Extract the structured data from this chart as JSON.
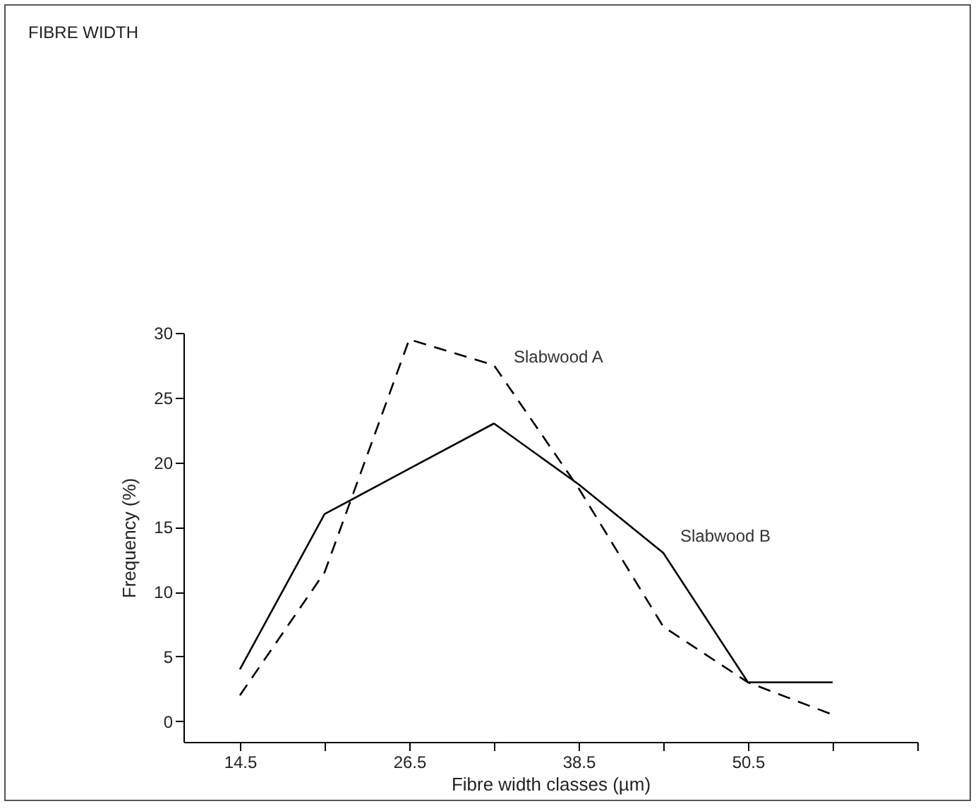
{
  "chart_data": {
    "type": "line",
    "title": "FIBRE WIDTH",
    "xlabel": "Fibre width classes (µm)",
    "ylabel": "Frequency (%)",
    "x": [
      14.5,
      20.5,
      26.5,
      32.5,
      38.5,
      44.5,
      50.5,
      56.5
    ],
    "series": [
      {
        "name": "Slabwood A",
        "color": "#000000",
        "line_style": "dashed",
        "values": [
          2,
          11.5,
          29.5,
          27.5,
          18,
          7.3,
          3,
          0.5
        ]
      },
      {
        "name": "Slabwood B",
        "color": "#000000",
        "line_style": "solid",
        "values": [
          4,
          16,
          19.5,
          23,
          18.3,
          13,
          3,
          3
        ]
      }
    ],
    "xlim": [
      10.5,
      62.5
    ],
    "xticks": [
      14.5,
      {
        "value": 20.5,
        "label": null
      },
      26.5,
      {
        "value": 32.5,
        "label": null
      },
      38.5,
      {
        "value": 44.5,
        "label": null
      },
      50.5,
      {
        "value": 56.5,
        "label": null
      },
      {
        "value": 62.5,
        "label": null
      }
    ],
    "ylim": [
      -1.6,
      30
    ],
    "yticks": [
      0,
      5,
      10,
      15,
      20,
      25,
      30
    ],
    "grid": false,
    "marker": "none"
  }
}
